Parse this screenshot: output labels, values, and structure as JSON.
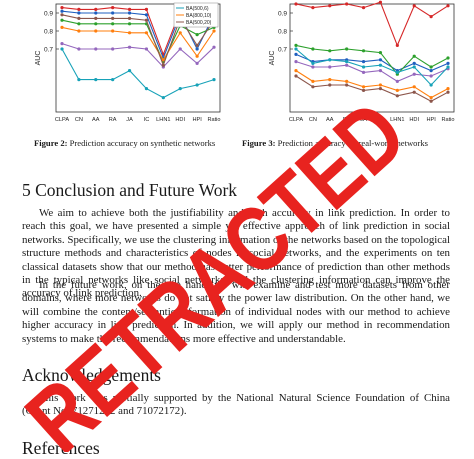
{
  "figures": {
    "left": {
      "caption_label": "Figure 2:",
      "caption_text": " Prediction accuracy on synthetic networks"
    },
    "right": {
      "caption_label": "Figure 3:",
      "caption_text": " Prediction accuracy on real-world networks"
    }
  },
  "chart_data": [
    {
      "type": "line",
      "ylabel": "AUC",
      "categories": [
        "CLPA",
        "CN",
        "AA",
        "RA",
        "JA",
        "IC",
        "LHN1",
        "HDI",
        "HPI",
        "Ratio"
      ],
      "ytick_labels": [
        "0.9",
        "0.8",
        "0.7"
      ],
      "ylim": [
        0.35,
        0.95
      ],
      "grid": false,
      "legend_position": "top-right",
      "series": [
        {
          "name": "",
          "color": "#d62728",
          "values": [
            0.93,
            0.92,
            0.92,
            0.93,
            0.92,
            0.92,
            0.67,
            0.91,
            0.91,
            0.91
          ]
        },
        {
          "name": "",
          "color": "#1f5fbf",
          "values": [
            0.91,
            0.9,
            0.9,
            0.9,
            0.9,
            0.89,
            0.65,
            0.89,
            0.7,
            0.89
          ]
        },
        {
          "name": "",
          "color": "#2ca02c",
          "values": [
            0.86,
            0.84,
            0.84,
            0.84,
            0.84,
            0.84,
            0.63,
            0.83,
            0.78,
            0.82
          ]
        },
        {
          "name": "",
          "color": "#9467bd",
          "values": [
            0.73,
            0.7,
            0.7,
            0.7,
            0.71,
            0.7,
            0.6,
            0.7,
            0.62,
            0.71
          ]
        },
        {
          "name": "BA(500,6)",
          "color": "#17a2b8",
          "values": [
            0.7,
            0.53,
            0.53,
            0.53,
            0.58,
            0.48,
            0.43,
            0.48,
            0.5,
            0.53
          ]
        },
        {
          "name": "BA(800,10)",
          "color": "#ff7f0e",
          "values": [
            0.82,
            0.8,
            0.8,
            0.8,
            0.79,
            0.79,
            0.64,
            0.79,
            0.66,
            0.8
          ]
        },
        {
          "name": "BA(500,20)",
          "color": "#8c564b",
          "values": [
            0.89,
            0.87,
            0.87,
            0.87,
            0.87,
            0.86,
            0.61,
            0.87,
            0.72,
            0.86
          ]
        }
      ]
    },
    {
      "type": "line",
      "ylabel": "AUC",
      "categories": [
        "CLPA",
        "CN",
        "AA",
        "RA",
        "JA",
        "IC",
        "LHN1",
        "HDI",
        "HPI",
        "Ratio"
      ],
      "ytick_labels": [
        "0.9",
        "0.8",
        "0.7"
      ],
      "ylim": [
        0.35,
        0.95
      ],
      "grid": false,
      "legend_position": "center-right",
      "series": [
        {
          "name": "",
          "color": "#d62728",
          "values": [
            0.95,
            0.93,
            0.94,
            0.95,
            0.93,
            0.96,
            0.72,
            0.94,
            0.88,
            0.94
          ]
        },
        {
          "name": "",
          "color": "#1f5fbf",
          "values": [
            0.67,
            0.63,
            0.64,
            0.64,
            0.63,
            0.64,
            0.58,
            0.62,
            0.58,
            0.62
          ]
        },
        {
          "name": "",
          "color": "#2ca02c",
          "values": [
            0.72,
            0.7,
            0.69,
            0.7,
            0.69,
            0.68,
            0.56,
            0.66,
            0.6,
            0.65
          ]
        },
        {
          "name": "",
          "color": "#9467bd",
          "values": [
            0.63,
            0.6,
            0.6,
            0.61,
            0.57,
            0.58,
            0.52,
            0.56,
            0.55,
            0.59
          ]
        },
        {
          "name": "",
          "color": "#17a2b8",
          "values": [
            0.7,
            0.62,
            0.64,
            0.63,
            0.6,
            0.61,
            0.57,
            0.6,
            0.5,
            0.6
          ]
        },
        {
          "name": "",
          "color": "#ff7f0e",
          "values": [
            0.58,
            0.52,
            0.53,
            0.52,
            0.49,
            0.5,
            0.47,
            0.49,
            0.43,
            0.48
          ]
        },
        {
          "name": "",
          "color": "#8c564b",
          "values": [
            0.55,
            0.49,
            0.5,
            0.5,
            0.47,
            0.48,
            0.44,
            0.46,
            0.41,
            0.46
          ]
        }
      ]
    }
  ],
  "conclusion": {
    "heading": "5   Conclusion and Future Work",
    "para1": "We aim to achieve both the justifiability and high accuracy in link prediction. In order to reach this goal, we have presented a simple yet effective approach of link prediction in social networks. Specifically, we use the clustering information of the networks based on the topological structure methods and characteristics of nodes in social networks, and the experiments on ten classical datasets show that our method has better performance of prediction than other methods in the typical networks like social networks, and the clustering information can improve the accuracy of link prediction.",
    "para2": "In the future work, on the one hand, we will examine and test more datasets from other domains, where more networks do not satisfy the power law distribution. On the other hand, we will combine the content/semantic information of individual nodes with our method to achieve higher accuracy in link prediction. In addition, we will apply our method in recommendation systems to make the recommendations more effective and understandable."
  },
  "acknowledgements": {
    "heading": "Acknowledgements",
    "text": "This work was partially supported by the National Natural Science Foundation of China (Grant No. 71271212 and 71072172)."
  },
  "references": {
    "heading": "References"
  },
  "stamp": {
    "text": "RETRACTED",
    "color": "#e8231f"
  }
}
